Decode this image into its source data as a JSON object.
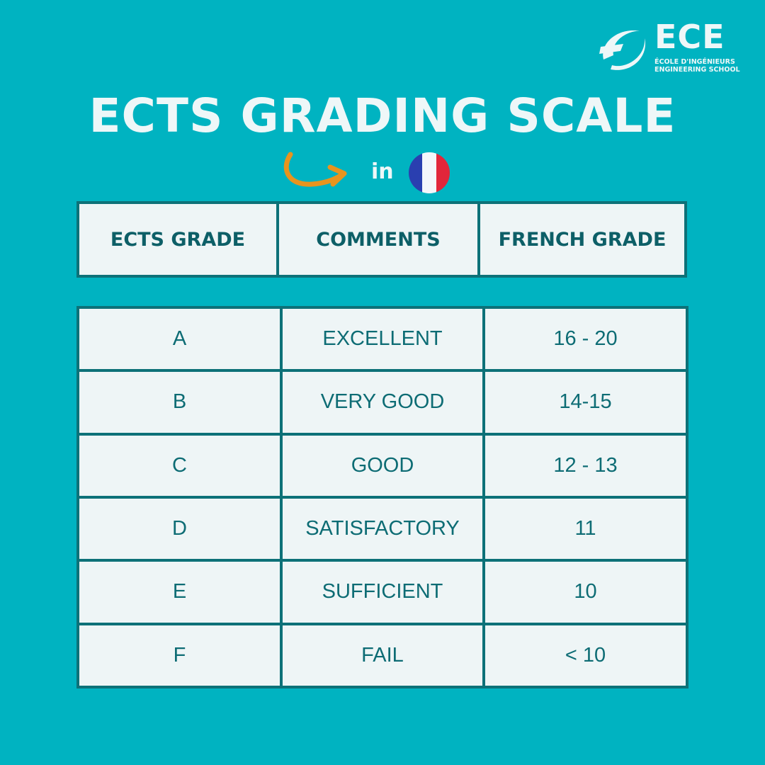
{
  "logo": {
    "name": "ECE",
    "line1": "ÉCOLE D'INGÉNIEURS",
    "line2": "ENGINEERING SCHOOL"
  },
  "title": "ECTS GRADING SCALE",
  "subtitle_in": "in",
  "icons": {
    "arrow": "curved-arrow-icon",
    "flag": "france-flag-icon"
  },
  "colors": {
    "background": "#00b3c1",
    "border": "#0d7178",
    "cell": "#eef5f6",
    "text": "#0d6c74",
    "arrow": "#e8941e"
  },
  "headers": [
    "ECTS GRADE",
    "COMMENTS",
    "FRENCH GRADE"
  ],
  "rows": [
    {
      "grade": "A",
      "comment": "EXCELLENT",
      "french": "16 - 20"
    },
    {
      "grade": "B",
      "comment": "VERY GOOD",
      "french": "14-15"
    },
    {
      "grade": "C",
      "comment": "GOOD",
      "french": "12 - 13"
    },
    {
      "grade": "D",
      "comment": "SATISFACTORY",
      "french": "11"
    },
    {
      "grade": "E",
      "comment": "SUFFICIENT",
      "french": "10"
    },
    {
      "grade": "F",
      "comment": "FAIL",
      "french": "< 10"
    }
  ]
}
